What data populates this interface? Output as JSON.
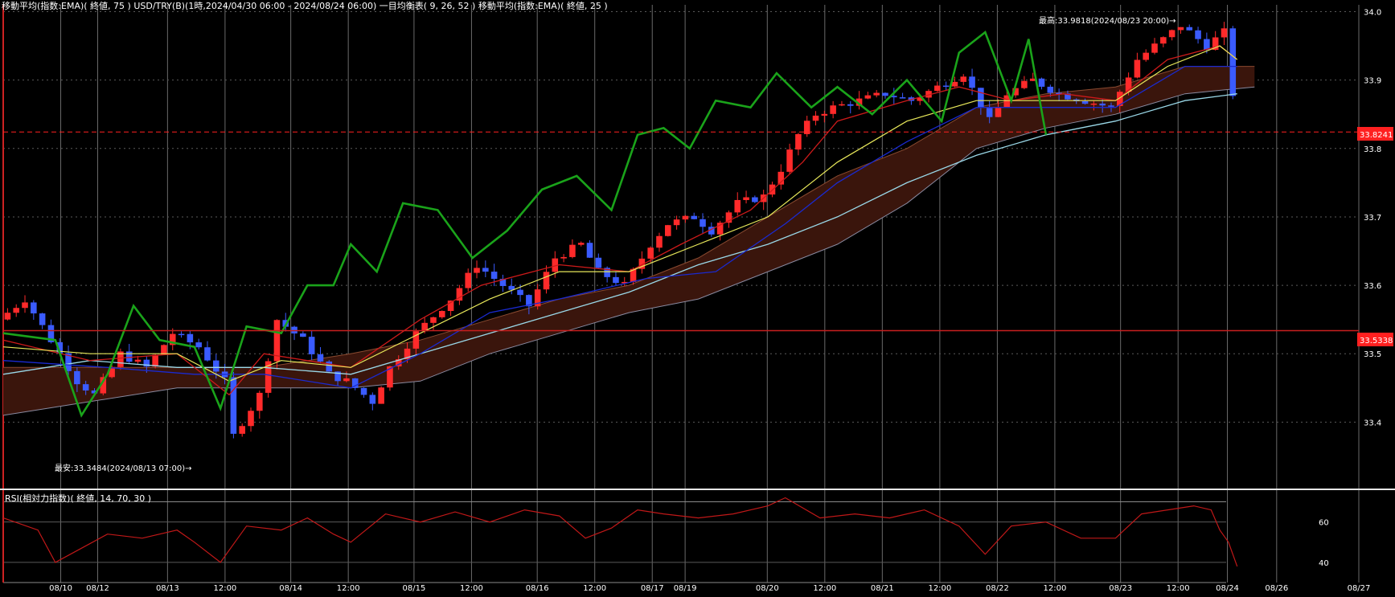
{
  "header": {
    "main_title": "移動平均(指数:EMA)( 終値, 75 )   USD/TRY(B)(1時,2024/04/30 06:00 - 2024/08/24 06:00)   一目均衡表( 9, 26, 52 )   移動平均(指数:EMA)( 終値, 25 )",
    "sub_title": "RSI(相対力指数)( 終値, 14, 70, 30 )"
  },
  "annotations": {
    "high_label": "最高:33.9818(2024/08/23 20:00)→",
    "low_label": "最安:33.3484(2024/08/13 07:00)→",
    "price_tag_upper": "33.8241",
    "price_tag_lower": "33.5338"
  },
  "colors": {
    "background": "#000000",
    "up_candle": "#ff2a2a",
    "down_candle": "#3a5bff",
    "chikou": "#1aa31a",
    "tenkan": "#cc1a1a",
    "kijun": "#1a2ad0",
    "ema25": "#e8e85a",
    "ema75": "#9ad8e8",
    "kumo": "#3a150c",
    "kumo_edge": "#8a8aa0",
    "rsi": "#c01818",
    "grid": "#555555",
    "price_tag": "#ff2020"
  },
  "chart_data": [
    {
      "type": "candlestick",
      "title": "USD/TRY(B)",
      "ylim": [
        33.31,
        34.01
      ],
      "y_ticks": [
        "34.0",
        "33.9",
        "33.8",
        "33.7",
        "33.6",
        "33.5",
        "33.4"
      ],
      "y_tick_values": [
        34.0,
        33.9,
        33.8,
        33.7,
        33.6,
        33.5,
        33.4
      ],
      "x_ticks": [
        "08/10",
        "08/12",
        "08/13",
        "12:00",
        "08/14",
        "12:00",
        "08/15",
        "12:00",
        "08/16",
        "12:00",
        "08/17",
        "08/19",
        "08/20",
        "12:00",
        "08/21",
        "12:00",
        "08/22",
        "12:00",
        "08/23",
        "12:00",
        "08/24",
        "08/26",
        "08/27"
      ],
      "horizontal_lines": [
        33.8241,
        33.5338
      ],
      "price_path": [
        [
          0,
          33.55
        ],
        [
          3,
          33.58
        ],
        [
          6,
          33.52
        ],
        [
          9,
          33.46
        ],
        [
          11,
          33.44
        ],
        [
          14,
          33.5
        ],
        [
          17,
          33.48
        ],
        [
          20,
          33.53
        ],
        [
          23,
          33.51
        ],
        [
          26,
          33.46
        ],
        [
          27,
          33.38
        ],
        [
          30,
          33.44
        ],
        [
          32,
          33.55
        ],
        [
          35,
          33.52
        ],
        [
          38,
          33.47
        ],
        [
          40,
          33.46
        ],
        [
          43,
          33.43
        ],
        [
          45,
          33.48
        ],
        [
          48,
          33.53
        ],
        [
          52,
          33.58
        ],
        [
          55,
          33.63
        ],
        [
          58,
          33.6
        ],
        [
          61,
          33.57
        ],
        [
          64,
          33.64
        ],
        [
          67,
          33.66
        ],
        [
          69,
          33.62
        ],
        [
          72,
          33.6
        ],
        [
          75,
          33.66
        ],
        [
          77,
          33.69
        ],
        [
          80,
          33.7
        ],
        [
          82,
          33.68
        ],
        [
          85,
          33.72
        ],
        [
          88,
          33.73
        ],
        [
          90,
          33.77
        ],
        [
          92,
          33.82
        ],
        [
          94,
          33.85
        ],
        [
          96,
          33.86
        ],
        [
          99,
          33.87
        ],
        [
          102,
          33.88
        ],
        [
          105,
          33.87
        ],
        [
          108,
          33.89
        ],
        [
          111,
          33.91
        ],
        [
          114,
          33.84
        ],
        [
          116,
          33.88
        ],
        [
          119,
          33.9
        ],
        [
          122,
          33.88
        ],
        [
          125,
          33.87
        ],
        [
          128,
          33.86
        ],
        [
          131,
          33.93
        ],
        [
          134,
          33.96
        ],
        [
          136,
          33.98
        ],
        [
          139,
          33.95
        ],
        [
          141,
          33.97
        ],
        [
          142,
          33.88
        ],
        [
          142.5,
          33.82
        ]
      ],
      "tenkan": [
        [
          0,
          33.52
        ],
        [
          10,
          33.49
        ],
        [
          20,
          33.5
        ],
        [
          26,
          33.44
        ],
        [
          30,
          33.5
        ],
        [
          40,
          33.48
        ],
        [
          48,
          33.55
        ],
        [
          55,
          33.6
        ],
        [
          64,
          33.63
        ],
        [
          72,
          33.62
        ],
        [
          78,
          33.66
        ],
        [
          86,
          33.71
        ],
        [
          92,
          33.78
        ],
        [
          96,
          33.84
        ],
        [
          104,
          33.87
        ],
        [
          110,
          33.89
        ],
        [
          116,
          33.87
        ],
        [
          122,
          33.88
        ],
        [
          128,
          33.87
        ],
        [
          134,
          33.93
        ],
        [
          140,
          33.95
        ],
        [
          142,
          33.93
        ]
      ],
      "kijun": [
        [
          0,
          33.49
        ],
        [
          12,
          33.48
        ],
        [
          22,
          33.47
        ],
        [
          30,
          33.47
        ],
        [
          40,
          33.45
        ],
        [
          48,
          33.5
        ],
        [
          56,
          33.56
        ],
        [
          64,
          33.58
        ],
        [
          74,
          33.61
        ],
        [
          82,
          33.62
        ],
        [
          90,
          33.69
        ],
        [
          96,
          33.75
        ],
        [
          104,
          33.81
        ],
        [
          112,
          33.86
        ],
        [
          120,
          33.86
        ],
        [
          128,
          33.86
        ],
        [
          136,
          33.92
        ],
        [
          142,
          33.92
        ]
      ],
      "ema25": [
        [
          0,
          33.51
        ],
        [
          10,
          33.5
        ],
        [
          20,
          33.5
        ],
        [
          26,
          33.46
        ],
        [
          32,
          33.49
        ],
        [
          40,
          33.48
        ],
        [
          48,
          33.53
        ],
        [
          56,
          33.58
        ],
        [
          64,
          33.62
        ],
        [
          72,
          33.62
        ],
        [
          80,
          33.66
        ],
        [
          88,
          33.7
        ],
        [
          96,
          33.78
        ],
        [
          104,
          33.84
        ],
        [
          112,
          33.87
        ],
        [
          120,
          33.87
        ],
        [
          128,
          33.87
        ],
        [
          134,
          33.92
        ],
        [
          140,
          33.95
        ],
        [
          142,
          33.93
        ]
      ],
      "ema75": [
        [
          0,
          33.47
        ],
        [
          10,
          33.49
        ],
        [
          20,
          33.48
        ],
        [
          30,
          33.48
        ],
        [
          40,
          33.47
        ],
        [
          48,
          33.5
        ],
        [
          56,
          33.53
        ],
        [
          64,
          33.56
        ],
        [
          72,
          33.59
        ],
        [
          80,
          33.63
        ],
        [
          88,
          33.66
        ],
        [
          96,
          33.7
        ],
        [
          104,
          33.75
        ],
        [
          112,
          33.79
        ],
        [
          120,
          33.82
        ],
        [
          128,
          33.84
        ],
        [
          136,
          33.87
        ],
        [
          142,
          33.88
        ]
      ],
      "chikou": [
        [
          0,
          33.53
        ],
        [
          6,
          33.52
        ],
        [
          9,
          33.41
        ],
        [
          12,
          33.47
        ],
        [
          15,
          33.57
        ],
        [
          18,
          33.52
        ],
        [
          22,
          33.51
        ],
        [
          25,
          33.42
        ],
        [
          28,
          33.54
        ],
        [
          32,
          33.53
        ],
        [
          35,
          33.6
        ],
        [
          38,
          33.6
        ],
        [
          40,
          33.66
        ],
        [
          43,
          33.62
        ],
        [
          46,
          33.72
        ],
        [
          50,
          33.71
        ],
        [
          54,
          33.64
        ],
        [
          58,
          33.68
        ],
        [
          62,
          33.74
        ],
        [
          66,
          33.76
        ],
        [
          70,
          33.71
        ],
        [
          73,
          33.82
        ],
        [
          76,
          33.83
        ],
        [
          79,
          33.8
        ],
        [
          82,
          33.87
        ],
        [
          86,
          33.86
        ],
        [
          89,
          33.91
        ],
        [
          93,
          33.86
        ],
        [
          96,
          33.89
        ],
        [
          100,
          33.85
        ],
        [
          104,
          33.9
        ],
        [
          108,
          33.84
        ],
        [
          110,
          33.94
        ],
        [
          113,
          33.97
        ],
        [
          116,
          33.87
        ],
        [
          118,
          33.96
        ],
        [
          120,
          33.82
        ]
      ],
      "kumo_span_a": [
        [
          0,
          33.48
        ],
        [
          10,
          33.48
        ],
        [
          20,
          33.48
        ],
        [
          30,
          33.48
        ],
        [
          40,
          33.5
        ],
        [
          48,
          33.52
        ],
        [
          56,
          33.55
        ],
        [
          64,
          33.58
        ],
        [
          72,
          33.6
        ],
        [
          80,
          33.64
        ],
        [
          88,
          33.7
        ],
        [
          96,
          33.76
        ],
        [
          104,
          33.8
        ],
        [
          112,
          33.86
        ],
        [
          120,
          33.88
        ],
        [
          128,
          33.89
        ],
        [
          136,
          33.92
        ],
        [
          144,
          33.92
        ]
      ],
      "kumo_span_b": [
        [
          0,
          33.41
        ],
        [
          10,
          33.43
        ],
        [
          20,
          33.45
        ],
        [
          30,
          33.45
        ],
        [
          40,
          33.45
        ],
        [
          48,
          33.46
        ],
        [
          56,
          33.5
        ],
        [
          64,
          33.53
        ],
        [
          72,
          33.56
        ],
        [
          80,
          33.58
        ],
        [
          88,
          33.62
        ],
        [
          96,
          33.66
        ],
        [
          104,
          33.72
        ],
        [
          112,
          33.8
        ],
        [
          120,
          33.83
        ],
        [
          128,
          33.85
        ],
        [
          136,
          33.88
        ],
        [
          144,
          33.89
        ]
      ]
    },
    {
      "type": "line",
      "title": "RSI",
      "ylim": [
        30,
        75
      ],
      "y_ticks": [
        "60",
        "40"
      ],
      "y_tick_values": [
        60,
        40
      ],
      "reference_levels": [
        70,
        30
      ],
      "rsi": [
        [
          0,
          62
        ],
        [
          4,
          56
        ],
        [
          6,
          40
        ],
        [
          9,
          47
        ],
        [
          12,
          54
        ],
        [
          16,
          52
        ],
        [
          20,
          56
        ],
        [
          22,
          50
        ],
        [
          25,
          40
        ],
        [
          28,
          58
        ],
        [
          32,
          56
        ],
        [
          35,
          62
        ],
        [
          38,
          54
        ],
        [
          40,
          50
        ],
        [
          44,
          64
        ],
        [
          48,
          60
        ],
        [
          52,
          65
        ],
        [
          56,
          60
        ],
        [
          60,
          66
        ],
        [
          64,
          63
        ],
        [
          67,
          52
        ],
        [
          70,
          57
        ],
        [
          73,
          66
        ],
        [
          76,
          64
        ],
        [
          80,
          62
        ],
        [
          84,
          64
        ],
        [
          88,
          68
        ],
        [
          90,
          72
        ],
        [
          94,
          62
        ],
        [
          98,
          64
        ],
        [
          102,
          62
        ],
        [
          106,
          66
        ],
        [
          110,
          58
        ],
        [
          113,
          44
        ],
        [
          116,
          58
        ],
        [
          120,
          60
        ],
        [
          124,
          52
        ],
        [
          128,
          52
        ],
        [
          131,
          64
        ],
        [
          134,
          66
        ],
        [
          137,
          68
        ],
        [
          139,
          66
        ],
        [
          140,
          56
        ],
        [
          141,
          50
        ],
        [
          142,
          38
        ]
      ]
    }
  ]
}
